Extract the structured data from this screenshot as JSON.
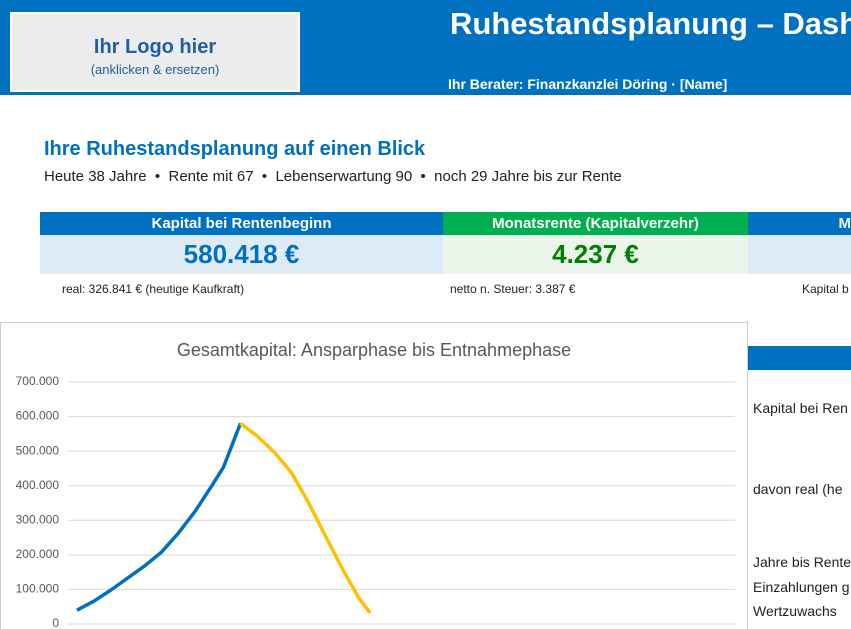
{
  "header": {
    "logo_title": "Ihr Logo hier",
    "logo_subtitle": "(anklicken & ersetzen)",
    "title": "Ruhestandsplanung – Dashboard",
    "subtitle": "Ihr Berater: Finanzkanzlei Döring · [Name]"
  },
  "summary": {
    "title": "Ihre Ruhestandsplanung auf einen Blick",
    "facts": "Heute 38 Jahre  •  Rente mit 67  •  Lebenserwartung 90  •  noch 29 Jahre bis zur Rente"
  },
  "kpis": [
    {
      "label": "Kapital bei Rentenbeginn",
      "value": "580.418 €",
      "note": "real: 326.841 € (heutige Kaufkraft)"
    },
    {
      "label": "Monatsrente (Kapitalverzehr)",
      "value": "4.237 €",
      "note": "netto n. Steuer: 3.387 €"
    },
    {
      "label": "M",
      "value": "",
      "note": "Kapital b"
    }
  ],
  "right_panel": {
    "rows": [
      "Kapital bei Ren",
      "davon real (he",
      "Jahre bis Rente",
      "Einzahlungen g",
      "Wertzuwachs"
    ]
  },
  "chart_data": {
    "type": "line",
    "title": "Gesamtkapital: Ansparphase bis Entnahmephase",
    "xlim": [
      35,
      157
    ],
    "ylim": [
      0,
      700000
    ],
    "yticks": [
      0,
      {
        "value": 100000,
        "label": "100.000"
      },
      {
        "value": 200000,
        "label": "200.000"
      },
      {
        "value": 300000,
        "label": "300.000"
      },
      {
        "value": 400000,
        "label": "400.000"
      },
      {
        "value": 500000,
        "label": "500.000"
      },
      {
        "value": 600000,
        "label": "600.000"
      },
      {
        "value": 700000,
        "label": "700.000"
      }
    ],
    "grid": true,
    "series": [
      {
        "color": "#0070c0",
        "x": [
          38,
          41,
          44,
          47,
          50,
          53,
          56,
          59,
          62,
          64,
          67
        ],
        "values": [
          40000,
          66000,
          98000,
          133000,
          168000,
          208000,
          263000,
          327000,
          402000,
          454000,
          580418
        ]
      },
      {
        "color": "#ffc000",
        "x": [
          67,
          70,
          73,
          76,
          79,
          82,
          85,
          88,
          90
        ],
        "values": [
          580418,
          543000,
          497000,
          439000,
          353000,
          257000,
          162000,
          75000,
          32000
        ]
      }
    ]
  }
}
